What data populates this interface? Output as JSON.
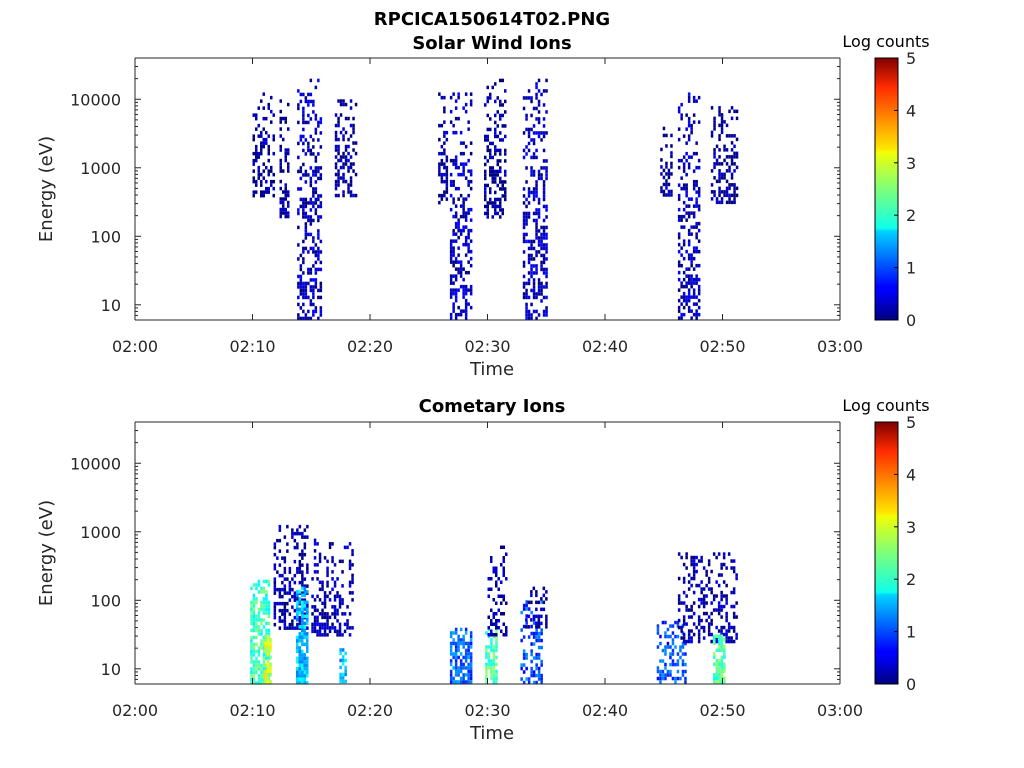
{
  "figure": {
    "title": "RPCICA150614T02.PNG",
    "colorbar_label": "Log counts"
  },
  "chart_data": [
    {
      "type": "heatmap",
      "title": "Solar Wind Ions",
      "xlabel": "Time",
      "ylabel": "Energy (eV)",
      "x_ticks": [
        "02:00",
        "02:10",
        "02:20",
        "02:30",
        "02:40",
        "02:50",
        "03:00"
      ],
      "y_ticks": [
        "10",
        "100",
        "1000",
        "10000"
      ],
      "y_scale": "log",
      "ylim": [
        6,
        40000
      ],
      "xlim": [
        "02:00",
        "03:00"
      ],
      "colorbar": {
        "label": "Log counts",
        "range": [
          0,
          5
        ],
        "ticks": [
          "0",
          "1",
          "2",
          "3",
          "4",
          "5"
        ]
      },
      "bursts": [
        {
          "x_min": [
            10.0,
            11.8
          ],
          "log_e_range": [
            2.6,
            4.1
          ],
          "log_counts": 0.1
        },
        {
          "x_min": [
            12.3,
            13.0
          ],
          "log_e_range": [
            2.3,
            4.0
          ],
          "log_counts": 0.1
        },
        {
          "x_min": [
            13.8,
            15.9
          ],
          "log_e_range": [
            0.8,
            4.3
          ],
          "log_counts": 0.3
        },
        {
          "x_min": [
            17.0,
            18.8
          ],
          "log_e_range": [
            2.6,
            4.0
          ],
          "log_counts": 0.1
        },
        {
          "x_min": [
            25.8,
            26.5
          ],
          "log_e_range": [
            2.5,
            4.1
          ],
          "log_counts": 0.1
        },
        {
          "x_min": [
            26.8,
            28.6
          ],
          "log_e_range": [
            0.8,
            4.1
          ],
          "log_counts": 0.3
        },
        {
          "x_min": [
            29.7,
            31.6
          ],
          "log_e_range": [
            2.3,
            4.3
          ],
          "log_counts": 0.1
        },
        {
          "x_min": [
            33.0,
            35.0
          ],
          "log_e_range": [
            0.8,
            4.3
          ],
          "log_counts": 0.3
        },
        {
          "x_min": [
            44.7,
            45.7
          ],
          "log_e_range": [
            2.6,
            3.6
          ],
          "log_counts": 0.1
        },
        {
          "x_min": [
            46.2,
            48.1
          ],
          "log_e_range": [
            0.8,
            4.1
          ],
          "log_counts": 0.3
        },
        {
          "x_min": [
            49.0,
            51.2
          ],
          "log_e_range": [
            2.5,
            3.9
          ],
          "log_counts": 0.1
        }
      ]
    },
    {
      "type": "heatmap",
      "title": "Cometary Ions",
      "xlabel": "Time",
      "ylabel": "Energy (eV)",
      "x_ticks": [
        "02:00",
        "02:10",
        "02:20",
        "02:30",
        "02:40",
        "02:50",
        "03:00"
      ],
      "y_ticks": [
        "10",
        "100",
        "1000",
        "10000"
      ],
      "y_scale": "log",
      "ylim": [
        6,
        40000
      ],
      "xlim": [
        "02:00",
        "03:00"
      ],
      "colorbar": {
        "label": "Log counts",
        "range": [
          0,
          5
        ],
        "ticks": [
          "0",
          "1",
          "2",
          "3",
          "4",
          "5"
        ]
      },
      "bursts": [
        {
          "x_min": [
            9.8,
            11.5
          ],
          "log_e_range": [
            0.8,
            2.3
          ],
          "log_counts": 2.2
        },
        {
          "x_min": [
            11.0,
            11.6
          ],
          "log_e_range": [
            0.8,
            1.5
          ],
          "log_counts": 2.9
        },
        {
          "x_min": [
            11.8,
            14.6
          ],
          "log_e_range": [
            1.6,
            3.1
          ],
          "log_counts": 0.2
        },
        {
          "x_min": [
            13.7,
            14.6
          ],
          "log_e_range": [
            0.8,
            2.2
          ],
          "log_counts": 1.6
        },
        {
          "x_min": [
            15.0,
            18.6
          ],
          "log_e_range": [
            1.5,
            2.9
          ],
          "log_counts": 0.2
        },
        {
          "x_min": [
            17.4,
            18.0
          ],
          "log_e_range": [
            0.8,
            1.3
          ],
          "log_counts": 1.5
        },
        {
          "x_min": [
            26.8,
            28.6
          ],
          "log_e_range": [
            0.8,
            1.6
          ],
          "log_counts": 1.1
        },
        {
          "x_min": [
            29.8,
            30.8
          ],
          "log_e_range": [
            0.8,
            1.6
          ],
          "log_counts": 2.3
        },
        {
          "x_min": [
            30.0,
            31.6
          ],
          "log_e_range": [
            1.5,
            2.8
          ],
          "log_counts": 0.2
        },
        {
          "x_min": [
            32.8,
            34.6
          ],
          "log_e_range": [
            0.8,
            2.0
          ],
          "log_counts": 1.0
        },
        {
          "x_min": [
            33.2,
            35.0
          ],
          "log_e_range": [
            1.6,
            2.2
          ],
          "log_counts": 0.2
        },
        {
          "x_min": [
            44.4,
            46.8
          ],
          "log_e_range": [
            0.8,
            1.7
          ],
          "log_counts": 1.0
        },
        {
          "x_min": [
            46.2,
            51.2
          ],
          "log_e_range": [
            1.4,
            2.7
          ],
          "log_counts": 0.2
        },
        {
          "x_min": [
            49.2,
            50.2
          ],
          "log_e_range": [
            0.8,
            1.5
          ],
          "log_counts": 2.3
        }
      ]
    }
  ]
}
